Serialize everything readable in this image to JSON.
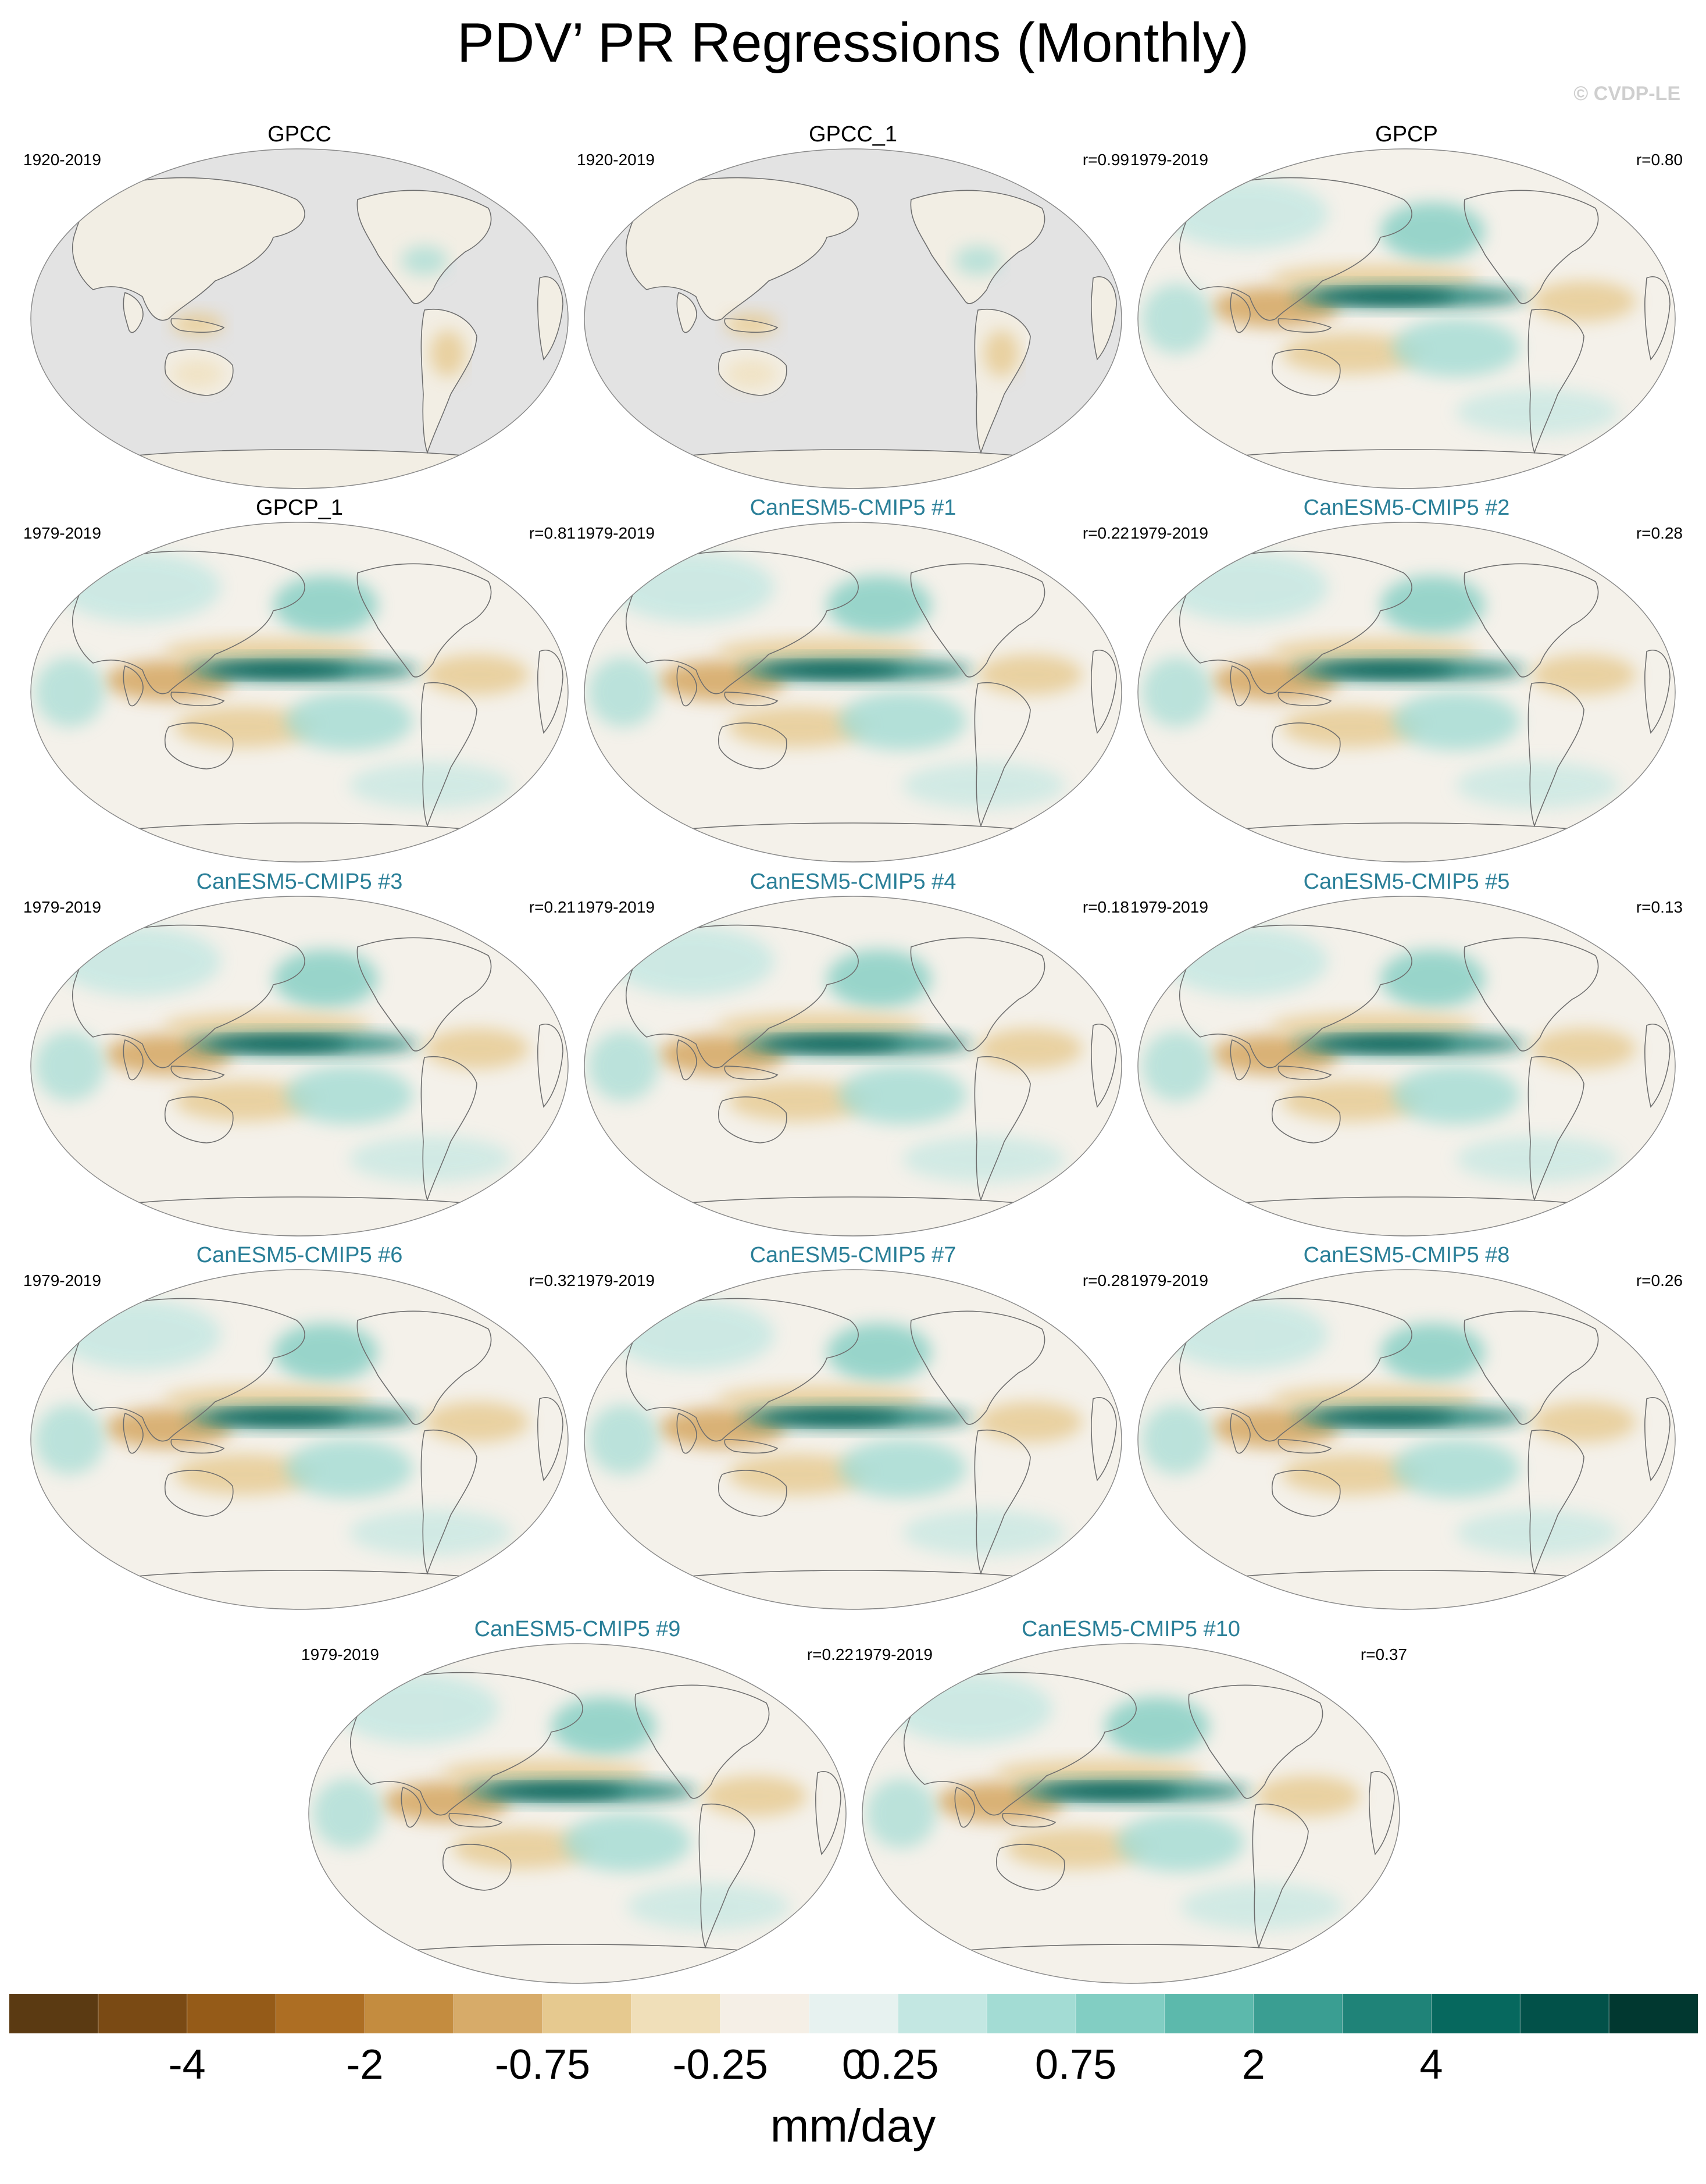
{
  "title": "PDV’ PR Regressions (Monthly)",
  "watermark": "© CVDP-LE",
  "panels": [
    {
      "name": "GPCC",
      "years": "1920-2019",
      "r": "",
      "style": "obs",
      "land_only": true
    },
    {
      "name": "GPCC_1",
      "years": "1920-2019",
      "r": "r=0.99",
      "style": "obs",
      "land_only": true
    },
    {
      "name": "GPCP",
      "years": "1979-2019",
      "r": "r=0.80",
      "style": "obs",
      "land_only": false
    },
    {
      "name": "GPCP_1",
      "years": "1979-2019",
      "r": "r=0.81",
      "style": "obs",
      "land_only": false
    },
    {
      "name": "CanESM5-CMIP5 #1",
      "years": "1979-2019",
      "r": "r=0.22",
      "style": "model",
      "land_only": false
    },
    {
      "name": "CanESM5-CMIP5 #2",
      "years": "1979-2019",
      "r": "r=0.28",
      "style": "model",
      "land_only": false
    },
    {
      "name": "CanESM5-CMIP5 #3",
      "years": "1979-2019",
      "r": "r=0.21",
      "style": "model",
      "land_only": false
    },
    {
      "name": "CanESM5-CMIP5 #4",
      "years": "1979-2019",
      "r": "r=0.18",
      "style": "model",
      "land_only": false
    },
    {
      "name": "CanESM5-CMIP5 #5",
      "years": "1979-2019",
      "r": "r=0.13",
      "style": "model",
      "land_only": false
    },
    {
      "name": "CanESM5-CMIP5 #6",
      "years": "1979-2019",
      "r": "r=0.32",
      "style": "model",
      "land_only": false
    },
    {
      "name": "CanESM5-CMIP5 #7",
      "years": "1979-2019",
      "r": "r=0.28",
      "style": "model",
      "land_only": false
    },
    {
      "name": "CanESM5-CMIP5 #8",
      "years": "1979-2019",
      "r": "r=0.26",
      "style": "model",
      "land_only": false
    },
    {
      "name": "CanESM5-CMIP5 #9",
      "years": "1979-2019",
      "r": "r=0.22",
      "style": "model",
      "land_only": false
    },
    {
      "name": "CanESM5-CMIP5 #10",
      "years": "1979-2019",
      "r": "r=0.37",
      "style": "model",
      "land_only": false
    }
  ],
  "colorbar": {
    "colors": [
      "#5b3a12",
      "#7a4a14",
      "#955b18",
      "#ad6e23",
      "#c48c3f",
      "#d7ab69",
      "#e6c98f",
      "#f0dfb9",
      "#f5efe6",
      "#e7f2f0",
      "#c3e7e2",
      "#a3dcd4",
      "#82cec3",
      "#5cb9ac",
      "#3a9e92",
      "#1f8378",
      "#06685e",
      "#025149",
      "#013830"
    ],
    "tick_labels": [
      "-4",
      "-2",
      "-0.75",
      "-0.25",
      "0",
      "0.25",
      "0.75",
      "2",
      "4"
    ],
    "units": "mm/day"
  },
  "colors": {
    "model_title": "#2a7f98",
    "land_missing": "#e3e3e3",
    "coast": "#6e6e6e"
  }
}
